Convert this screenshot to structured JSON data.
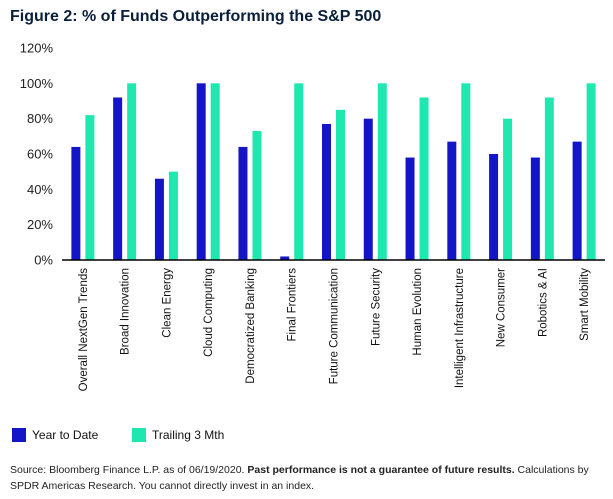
{
  "title": "Figure 2: % of Funds Outperforming the S&P 500",
  "source": {
    "text_start": "Source: Bloomberg Finance L.P. as of 06/19/2020.",
    "text_bold": "Past performance is not a guarantee of future results.",
    "text_end": "Calculations by SPDR Americas Research. You cannot directly invest in an index."
  },
  "colors": {
    "ytd": "#1515c8",
    "trailing": "#1ee8b0",
    "axis": "#000000",
    "grid": "#e6e6e6"
  },
  "chart_data": {
    "type": "bar",
    "title": "Figure 2: % of Funds Outperforming the S&P 500",
    "xlabel": "",
    "ylabel": "",
    "ylim": [
      0,
      120
    ],
    "yticks": [
      "0%",
      "20%",
      "40%",
      "60%",
      "80%",
      "100%",
      "120%"
    ],
    "grid": false,
    "legend": "bottom-left",
    "categories": [
      "Overall NextGen Trends",
      "Broad Innovation",
      "Clean Energy",
      "Cloud Computing",
      "Democratized Banking",
      "Final Frontiers",
      "Future Communication",
      "Future Security",
      "Human Evolution",
      "Intelligent Infrastructure",
      "New Consumer",
      "Robotics & AI",
      "Smart Mobility"
    ],
    "series": [
      {
        "name": "Year to Date",
        "values": [
          64,
          92,
          46,
          100,
          64,
          2,
          77,
          80,
          58,
          67,
          60,
          58,
          67
        ]
      },
      {
        "name": "Trailing 3 Mth",
        "values": [
          82,
          100,
          50,
          100,
          73,
          100,
          85,
          100,
          92,
          100,
          80,
          92,
          100
        ]
      }
    ]
  }
}
